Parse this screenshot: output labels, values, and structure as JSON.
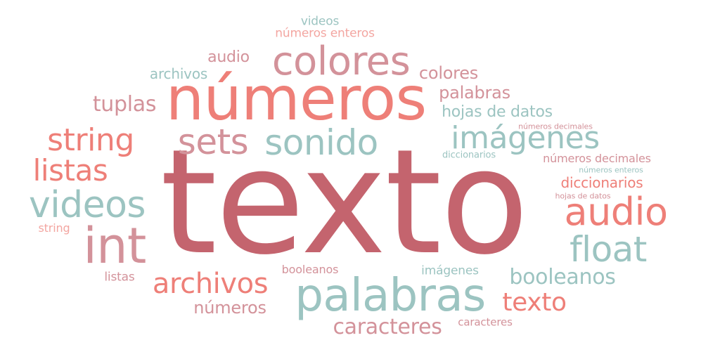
{
  "words": {
    "texto_big": "texto",
    "numeros_big": "números",
    "palabras_big": "palabras",
    "colores_big": "colores",
    "int": "int",
    "sonido": "sonido",
    "sets": "sets",
    "string_big": "string",
    "imagenes_big": "imágenes",
    "videos_big": "videos",
    "audio_big": "audio",
    "float": "float",
    "listas_big": "listas",
    "archivos_big": "archivos",
    "texto_mid": "texto",
    "booleanos_mid": "booleanos",
    "caracteres_mid": "caracteres",
    "tuplas": "tuplas",
    "numeros_mid": "números",
    "diccionarios_mid": "diccionarios",
    "hojas_de_datos_mid": "hojas de datos",
    "palabras_mid": "palabras",
    "colores_small": "colores",
    "audio_small": "audio",
    "archivos_small": "archivos",
    "numeros_decimales_mid": "números decimales",
    "numeros_enteros_mid": "números enteros",
    "videos_small": "videos",
    "string_small": "string",
    "listas_small": "listas",
    "booleanos_small": "booleanos",
    "imagenes_small": "imágenes",
    "caracteres_small": "caracteres",
    "diccionarios_small": "diccionarios",
    "numeros_decimales_small": "números decimales",
    "numeros_enteros_small": "números enteros",
    "hojas_de_datos_small": "hojas de datos"
  }
}
